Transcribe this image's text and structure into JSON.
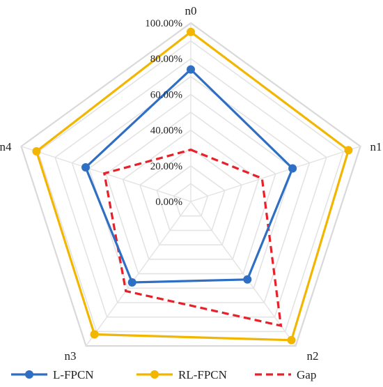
{
  "chart_data": {
    "type": "radar",
    "categories": [
      "n0",
      "n1",
      "n2",
      "n3",
      "n4"
    ],
    "rlim": [
      0,
      100
    ],
    "ticks": [
      "0.00%",
      "20.00%",
      "40.00%",
      "60.00%",
      "80.00%",
      "100.00%"
    ],
    "tick_values": [
      0,
      20,
      40,
      60,
      80,
      100
    ],
    "grid_values": [
      10,
      20,
      30,
      40,
      50,
      60,
      70,
      80,
      90,
      100
    ],
    "series": [
      {
        "name": "L-FPCN",
        "values": [
          74,
          60,
          54,
          56,
          62
        ],
        "color": "#2e6fc4",
        "style": "solid",
        "marker": "circle"
      },
      {
        "name": "RL-FPCN",
        "values": [
          95,
          93,
          96,
          92,
          91
        ],
        "color": "#f2b600",
        "style": "solid",
        "marker": "circle"
      },
      {
        "name": "Gap",
        "values": [
          29,
          42,
          86,
          62,
          51
        ],
        "color": "#e8202a",
        "style": "dashed",
        "marker": "none"
      }
    ],
    "legend": "bottom",
    "grid": true
  }
}
